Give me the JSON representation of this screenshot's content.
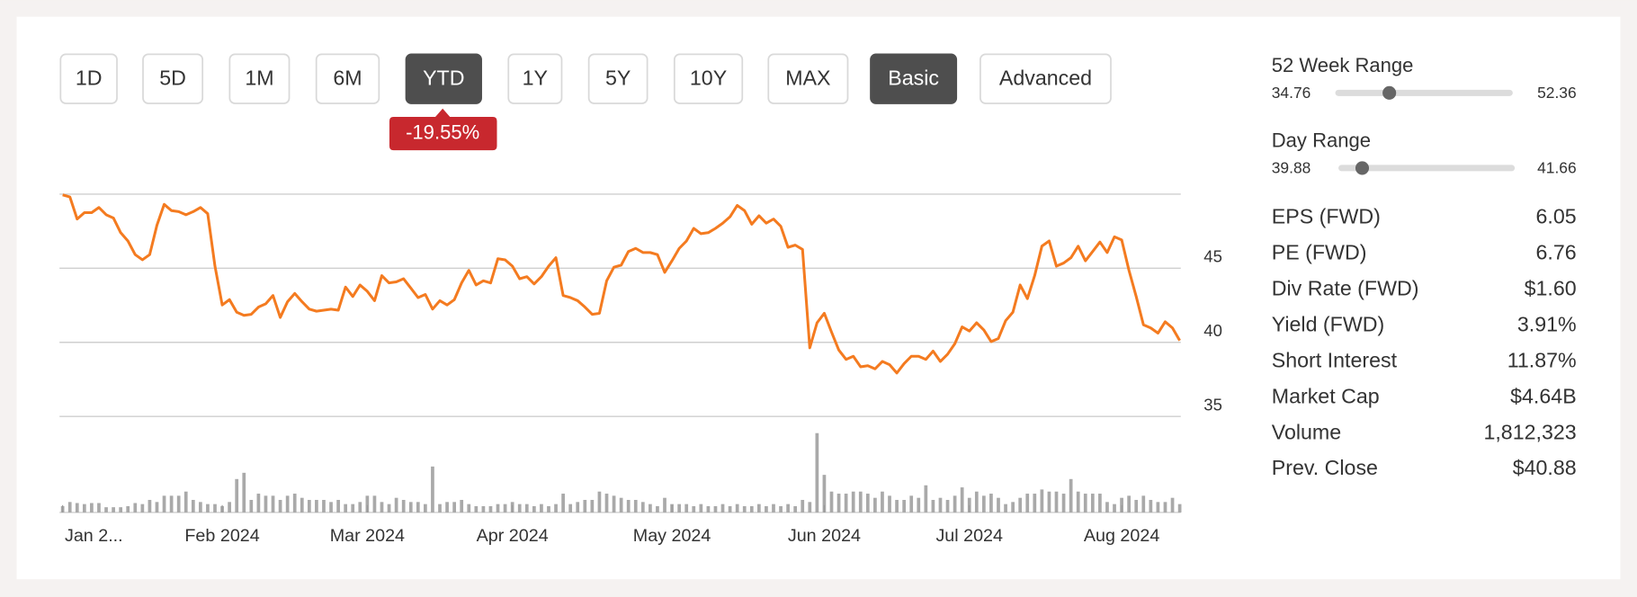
{
  "range_buttons": [
    {
      "label": "1D",
      "active": false
    },
    {
      "label": "5D",
      "active": false
    },
    {
      "label": "1M",
      "active": false
    },
    {
      "label": "6M",
      "active": false
    },
    {
      "label": "YTD",
      "active": true
    },
    {
      "label": "1Y",
      "active": false
    },
    {
      "label": "5Y",
      "active": false
    },
    {
      "label": "10Y",
      "active": false
    },
    {
      "label": "MAX",
      "active": false
    }
  ],
  "mode_buttons": [
    {
      "label": "Basic",
      "active": true
    },
    {
      "label": "Advanced",
      "active": false
    }
  ],
  "change_badge": "-19.55%",
  "stats": {
    "week52_range": {
      "label": "52 Week Range",
      "low": 34.76,
      "high": 52.36
    },
    "day_range": {
      "label": "Day Range",
      "low": 39.88,
      "high": 41.66
    },
    "rows": [
      {
        "label": "EPS (FWD)",
        "value": "6.05"
      },
      {
        "label": "PE (FWD)",
        "value": "6.76"
      },
      {
        "label": "Div Rate (FWD)",
        "value": "$1.60"
      },
      {
        "label": "Yield (FWD)",
        "value": "3.91%"
      },
      {
        "label": "Short Interest",
        "value": "11.87%"
      },
      {
        "label": "Market Cap",
        "value": "$4.64B"
      },
      {
        "label": "Volume",
        "value": "1,812,323"
      },
      {
        "label": "Prev. Close",
        "value": "$40.88"
      }
    ]
  },
  "chart_data": [
    {
      "type": "line",
      "categories": [
        "Jan 2...",
        null,
        null,
        null,
        null,
        null,
        null,
        null,
        null,
        null,
        null,
        null,
        null,
        null,
        null,
        null,
        null,
        null,
        null,
        null,
        null,
        null,
        "Feb 2024",
        null,
        null,
        null,
        null,
        null,
        null,
        null,
        null,
        null,
        null,
        null,
        null,
        null,
        null,
        null,
        null,
        null,
        null,
        null,
        "Mar 2024",
        null,
        null,
        null,
        null,
        null,
        null,
        null,
        null,
        null,
        null,
        null,
        null,
        null,
        null,
        null,
        null,
        null,
        null,
        null,
        "Apr 2024",
        null,
        null,
        null,
        null,
        null,
        null,
        null,
        null,
        null,
        null,
        null,
        null,
        null,
        null,
        null,
        null,
        null,
        null,
        null,
        null,
        null,
        "May 2024",
        null,
        null,
        null,
        null,
        null,
        null,
        null,
        null,
        null,
        null,
        null,
        null,
        null,
        null,
        null,
        null,
        null,
        null,
        null,
        null,
        "Jun 2024",
        null,
        null,
        null,
        null,
        null,
        null,
        null,
        null,
        null,
        null,
        null,
        null,
        null,
        null,
        null,
        null,
        null,
        null,
        null,
        "Jul 2024",
        null,
        null,
        null,
        null,
        null,
        null,
        null,
        null,
        null,
        null,
        null,
        null,
        null,
        null,
        null,
        null,
        null,
        null,
        null,
        null,
        "Aug 2024",
        null,
        null,
        null,
        null,
        null,
        null,
        null,
        null
      ],
      "series": [
        {
          "color": "#f47b20",
          "values": [
            49.95,
            49.81,
            48.32,
            48.75,
            48.75,
            49.1,
            48.61,
            48.39,
            47.4,
            46.84,
            45.92,
            45.57,
            45.92,
            47.9,
            49.31,
            48.89,
            48.82,
            48.61,
            48.82,
            49.1,
            48.68,
            45.14,
            42.52,
            42.88,
            42.03,
            41.82,
            41.89,
            42.38,
            42.6,
            43.16,
            41.68,
            42.74,
            43.3,
            42.74,
            42.24,
            42.1,
            42.17,
            42.24,
            42.17,
            43.73,
            43.09,
            43.87,
            43.44,
            42.81,
            44.5,
            44.01,
            44.08,
            44.29,
            43.66,
            43.02,
            43.23,
            42.24,
            42.81,
            42.52,
            42.88,
            44.01,
            44.86,
            43.87,
            44.15,
            44.01,
            45.64,
            45.57,
            45.14,
            44.29,
            44.43,
            43.94,
            44.43,
            45.14,
            45.71,
            43.16,
            43.02,
            42.81,
            42.38,
            41.89,
            41.96,
            44.15,
            45.07,
            45.21,
            46.13,
            46.34,
            46.06,
            46.06,
            45.92,
            44.72,
            45.5,
            46.34,
            46.84,
            47.69,
            47.33,
            47.4,
            47.69,
            48.04,
            48.47,
            49.24,
            48.89,
            47.97,
            48.54,
            48.04,
            48.32,
            47.83,
            46.41,
            46.56,
            46.27,
            39.63,
            41.32,
            41.96,
            40.69,
            39.48,
            38.85,
            39.06,
            38.35,
            38.42,
            38.21,
            38.71,
            38.49,
            37.93,
            38.56,
            39.06,
            39.06,
            38.85,
            39.41,
            38.71,
            39.2,
            39.91,
            41.04,
            40.76,
            41.32,
            40.83,
            40.05,
            40.26,
            41.46,
            42.03,
            43.87,
            42.95,
            44.5,
            46.49,
            46.84,
            45.14,
            45.35,
            45.71,
            46.49,
            45.5,
            46.13,
            46.77,
            46.06,
            47.12,
            46.91,
            44.86,
            43.09,
            41.18,
            40.97,
            40.62,
            41.39,
            40.97,
            40.12
          ]
        }
      ],
      "ylim": [
        35,
        50
      ],
      "yticks": [
        35,
        40,
        45
      ],
      "grid": true
    },
    {
      "type": "bar",
      "color": "#a9a9a9",
      "ylim": [
        0,
        80
      ],
      "values": [
        6,
        10,
        9,
        8,
        9,
        9,
        5,
        5,
        5,
        6,
        9,
        8,
        12,
        10,
        16,
        16,
        16,
        20,
        12,
        10,
        8,
        8,
        6,
        10,
        32,
        38,
        12,
        18,
        16,
        16,
        12,
        16,
        18,
        14,
        12,
        12,
        12,
        10,
        12,
        8,
        8,
        10,
        16,
        16,
        10,
        8,
        14,
        12,
        10,
        10,
        8,
        44,
        8,
        10,
        10,
        12,
        8,
        6,
        6,
        6,
        8,
        8,
        10,
        8,
        8,
        6,
        8,
        6,
        8,
        18,
        8,
        10,
        12,
        12,
        20,
        18,
        16,
        14,
        12,
        12,
        10,
        8,
        6,
        14,
        8,
        8,
        8,
        6,
        8,
        6,
        6,
        8,
        6,
        8,
        6,
        6,
        8,
        6,
        8,
        6,
        8,
        6,
        12,
        10,
        76,
        36,
        20,
        18,
        18,
        20,
        20,
        18,
        14,
        20,
        16,
        12,
        12,
        16,
        14,
        26,
        12,
        14,
        12,
        16,
        24,
        14,
        20,
        16,
        18,
        14,
        8,
        10,
        14,
        18,
        18,
        22,
        20,
        20,
        18,
        32,
        20,
        18,
        18,
        18,
        10,
        8,
        14,
        16,
        12,
        16,
        12,
        10,
        10,
        14,
        8
      ]
    }
  ]
}
